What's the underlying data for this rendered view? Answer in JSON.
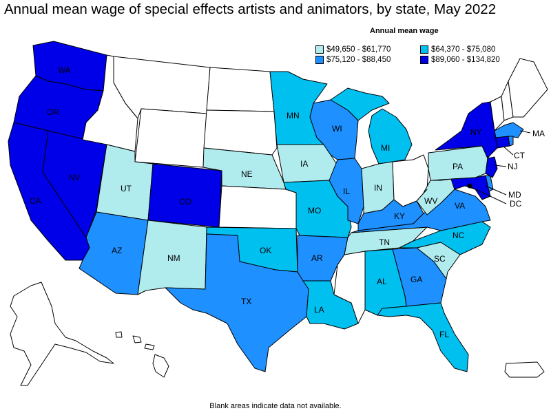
{
  "title": "Annual mean wage of special effects artists and animators, by state, May 2022",
  "legend": {
    "title": "Annual mean wage",
    "items": [
      {
        "label": "$49,650 - $61,770",
        "color": "#b0ecee"
      },
      {
        "label": "$64,370 - $75,080",
        "color": "#00c0f0"
      },
      {
        "label": "$75,120 - $88,450",
        "color": "#1e90ff"
      },
      {
        "label": "$89,060 - $134,820",
        "color": "#0000e8"
      }
    ]
  },
  "footnote": "Blank areas indicate data not available.",
  "colors": {
    "nodata": "#ffffff",
    "c1": "#b0ecee",
    "c2": "#00c0f0",
    "c3": "#1e90ff",
    "c4": "#0000e8"
  },
  "states": {
    "WA": "WA",
    "OR": "OR",
    "CA": "CA",
    "NV": "NV",
    "UT": "UT",
    "AZ": "AZ",
    "CO": "CO",
    "NM": "NM",
    "NE": "NE",
    "IA": "IA",
    "MN": "MN",
    "WI": "WI",
    "MI": "MI",
    "IL": "IL",
    "IN": "IN",
    "MO": "MO",
    "OK": "OK",
    "TX": "TX",
    "AR": "AR",
    "LA": "LA",
    "KY": "KY",
    "TN": "TN",
    "AL": "AL",
    "GA": "GA",
    "FL": "FL",
    "SC": "SC",
    "NC": "NC",
    "VA": "VA",
    "WV": "WV",
    "PA": "PA",
    "NY": "NY",
    "NJ": "NJ",
    "CT": "CT",
    "MA": "MA",
    "MD": "MD",
    "DC": "DC"
  }
}
